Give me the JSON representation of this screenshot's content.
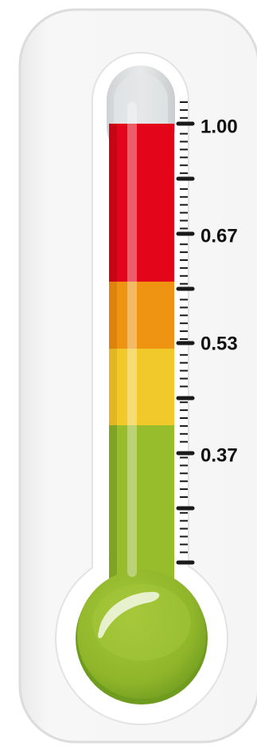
{
  "thermometer": {
    "scale_labels": [
      {
        "text": "1.00",
        "value": 1.0
      },
      {
        "text": "0.67",
        "value": 0.67
      },
      {
        "text": "0.53",
        "value": 0.53
      },
      {
        "text": "0.37",
        "value": 0.37
      }
    ],
    "fill_level": 1.0,
    "bands": [
      {
        "name": "green",
        "from": 0.0,
        "to": 0.37,
        "color": "#97bc2c",
        "shade": "#7fa324"
      },
      {
        "name": "yellow",
        "from": 0.37,
        "to": 0.53,
        "color": "#f1c92b",
        "shade": "#e2b622"
      },
      {
        "name": "orange",
        "from": 0.53,
        "to": 0.67,
        "color": "#ef9412",
        "shade": "#dd830e"
      },
      {
        "name": "red",
        "from": 0.67,
        "to": 1.0,
        "color": "#e3061a",
        "shade": "#c70514"
      }
    ],
    "bulb_color": "#97bc2c",
    "tick_color": "#1a1a1a",
    "frame_color": "#f2f2f2"
  }
}
